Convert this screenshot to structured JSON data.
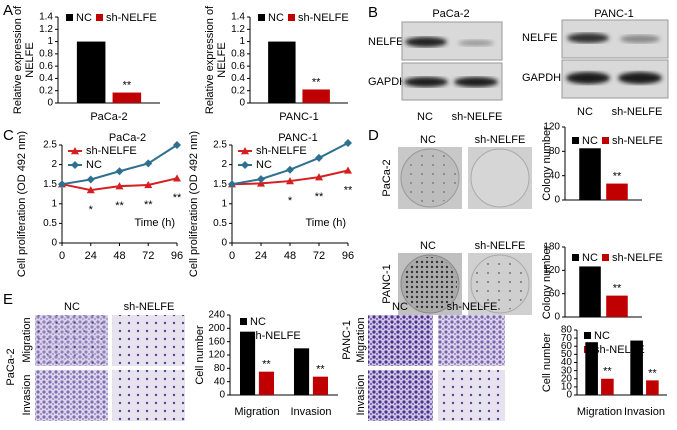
{
  "figure": {
    "panel_letters": [
      "A",
      "B",
      "C",
      "D",
      "E"
    ],
    "blots": [
      {
        "title": "PaCa-2",
        "rows": [
          "NELFE",
          "GAPDH"
        ],
        "lanes": [
          "NC",
          "sh-NELFE"
        ]
      },
      {
        "title": "PANC-1",
        "rows": [
          "NELFE",
          "GAPDH"
        ],
        "lanes": [
          "NC",
          "sh-NELFE"
        ]
      }
    ],
    "colony": {
      "rows": [
        "PaCa-2",
        "PANC-1"
      ],
      "columns": [
        "NC",
        "sh-NELFE"
      ]
    },
    "transwell": [
      {
        "cell_line": "PaCa-2",
        "columns": [
          "NC",
          "sh-NELFE"
        ],
        "rows": [
          "Migration",
          "Invasion"
        ]
      },
      {
        "cell_line": "PANC-1",
        "columns": [
          "NC",
          "sh-NELFE"
        ],
        "rows": [
          "Migration",
          "Invasion"
        ]
      }
    ]
  },
  "chart_data": [
    {
      "type": "bar",
      "ylabel": [
        "Relative expression of",
        "NELFE"
      ],
      "categories": [
        "PaCa-2"
      ],
      "series": [
        {
          "name": "NC",
          "color": "#000000",
          "values": [
            1.0
          ]
        },
        {
          "name": "sh-NELFE",
          "color": "#c00000",
          "values": [
            0.17
          ],
          "significance": [
            "**"
          ]
        }
      ],
      "ylim": [
        0,
        1.4
      ],
      "yticks": [
        0,
        0.2,
        0.4,
        0.6,
        0.8,
        1,
        1.2,
        1.4
      ]
    },
    {
      "type": "bar",
      "ylabel": [
        "Relative expression of",
        "NELFE"
      ],
      "categories": [
        "PANC-1"
      ],
      "series": [
        {
          "name": "NC",
          "color": "#000000",
          "values": [
            1.0
          ]
        },
        {
          "name": "sh-NELFE",
          "color": "#c00000",
          "values": [
            0.22
          ],
          "significance": [
            "**"
          ]
        }
      ],
      "ylim": [
        0,
        1.4
      ],
      "yticks": [
        0,
        0.2,
        0.4,
        0.6,
        0.8,
        1,
        1.2,
        1.4
      ]
    },
    {
      "type": "line",
      "title": "PaCa-2",
      "ylabel": "Cell proliferation (OD 492 nm)",
      "xlabel": "Time (h)",
      "x": [
        0,
        24,
        48,
        72,
        96
      ],
      "series": [
        {
          "name": "sh-NELFE",
          "color": "#d42020",
          "marker": "triangle",
          "values": [
            1.5,
            1.35,
            1.45,
            1.48,
            1.65
          ],
          "significance": [
            null,
            "*",
            "**",
            "**",
            "**"
          ]
        },
        {
          "name": "NC",
          "color": "#2f6f8f",
          "marker": "diamond",
          "values": [
            1.5,
            1.62,
            1.83,
            2.03,
            2.5
          ]
        }
      ],
      "xlim": [
        0,
        96
      ],
      "xticks": [
        0,
        24,
        48,
        72,
        96
      ],
      "ylim": [
        0,
        2.5
      ],
      "yticks": [
        0,
        0.5,
        1,
        1.5,
        2,
        2.5
      ]
    },
    {
      "type": "line",
      "title": "PANC-1",
      "ylabel": "Cell proliferation (OD 492 nm)",
      "xlabel": "Time (h)",
      "x": [
        0,
        24,
        48,
        72,
        96
      ],
      "series": [
        {
          "name": "sh-NELFE",
          "color": "#d42020",
          "marker": "triangle",
          "values": [
            1.5,
            1.52,
            1.58,
            1.68,
            1.85
          ],
          "significance": [
            null,
            null,
            "*",
            "**",
            "**"
          ]
        },
        {
          "name": "NC",
          "color": "#2f6f8f",
          "marker": "diamond",
          "values": [
            1.5,
            1.63,
            1.87,
            2.17,
            2.55
          ]
        }
      ],
      "xlim": [
        0,
        96
      ],
      "xticks": [
        0,
        24,
        48,
        72,
        96
      ],
      "ylim": [
        0,
        2.5
      ],
      "yticks": [
        0,
        0.5,
        1,
        1.5,
        2,
        2.5
      ]
    },
    {
      "type": "bar",
      "ylabel": "Colony number",
      "categories": [
        null
      ],
      "series": [
        {
          "name": "NC",
          "color": "#000000",
          "values": [
            85
          ]
        },
        {
          "name": "sh-NELFE",
          "color": "#c00000",
          "values": [
            27
          ],
          "significance": [
            "**"
          ]
        }
      ],
      "ylim": [
        0,
        120
      ],
      "yticks": [
        0,
        40,
        80,
        120
      ]
    },
    {
      "type": "bar",
      "ylabel": "Colony number",
      "categories": [
        null
      ],
      "series": [
        {
          "name": "NC",
          "color": "#000000",
          "values": [
            130
          ]
        },
        {
          "name": "sh-NELFE",
          "color": "#c00000",
          "values": [
            55
          ],
          "significance": [
            "**"
          ]
        }
      ],
      "ylim": [
        0,
        180
      ],
      "yticks": [
        0,
        60,
        120,
        180
      ]
    },
    {
      "type": "bar",
      "ylabel": "Cell number",
      "categories": [
        "Migration",
        "Invasion"
      ],
      "series": [
        {
          "name": "NC",
          "color": "#000000",
          "values": [
            190,
            140
          ]
        },
        {
          "name": "sh-NELFE",
          "color": "#c00000",
          "values": [
            70,
            55
          ],
          "significance": [
            "**",
            "**"
          ]
        }
      ],
      "ylim": [
        0,
        240
      ],
      "yticks": [
        0,
        40,
        80,
        120,
        160,
        200,
        240
      ]
    },
    {
      "type": "bar",
      "ylabel": "Cell number",
      "categories": [
        "Migration",
        "Invasion"
      ],
      "series": [
        {
          "name": "NC",
          "color": "#000000",
          "values": [
            65,
            67
          ]
        },
        {
          "name": "sh-NELFE",
          "color": "#c00000",
          "values": [
            20,
            18
          ],
          "significance": [
            "**",
            "**"
          ]
        }
      ],
      "ylim": [
        0,
        80
      ],
      "yticks": [
        0,
        10,
        20,
        30,
        40,
        50,
        60,
        70,
        80
      ]
    }
  ]
}
